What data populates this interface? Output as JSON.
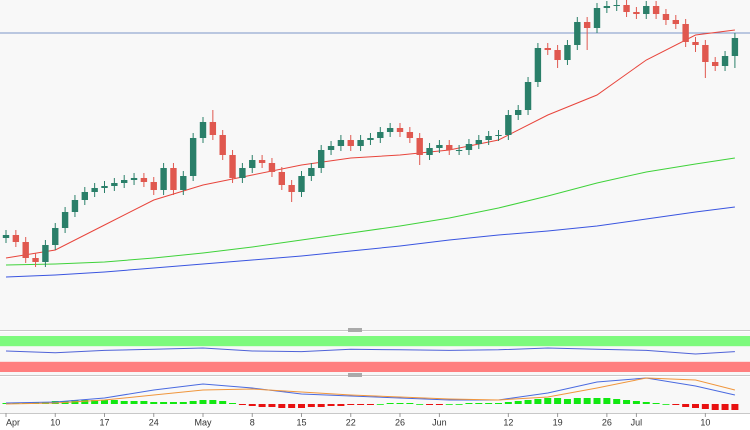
{
  "chart_data": {
    "type": "candlestick",
    "categories": [
      "Apr",
      null,
      null,
      null,
      null,
      "10",
      null,
      null,
      null,
      null,
      "17",
      null,
      null,
      null,
      null,
      "24",
      null,
      null,
      null,
      null,
      "May",
      null,
      null,
      null,
      null,
      "8",
      null,
      null,
      null,
      null,
      "15",
      null,
      null,
      null,
      null,
      "22",
      null,
      null,
      null,
      null,
      "26",
      null,
      null,
      null,
      "Jun",
      null,
      null,
      null,
      null,
      null,
      null,
      "12",
      null,
      null,
      null,
      null,
      "19",
      null,
      null,
      null,
      null,
      "26",
      null,
      null,
      "Jul",
      null,
      null,
      null,
      null,
      null,
      null,
      "10",
      null,
      null,
      null
    ],
    "open": [
      92,
      95,
      88,
      72,
      68,
      85,
      102,
      118,
      130,
      138,
      142,
      144,
      147,
      150,
      152,
      148,
      140,
      162,
      140,
      154,
      192,
      208,
      195,
      175,
      152,
      162,
      170,
      167,
      158,
      145,
      138,
      154,
      162,
      180,
      184,
      190,
      184,
      190,
      192,
      198,
      202,
      198,
      192,
      175,
      182,
      185,
      180,
      180,
      186,
      190,
      194,
      195,
      215,
      220,
      248,
      282,
      280,
      270,
      285,
      308,
      302,
      322,
      324,
      325,
      318,
      316,
      324,
      316,
      310,
      306,
      288,
      285,
      268,
      264,
      274
    ],
    "high": [
      100,
      100,
      93,
      77,
      90,
      107,
      123,
      135,
      143,
      147,
      149,
      152,
      155,
      157,
      157,
      153,
      167,
      167,
      159,
      197,
      213,
      220,
      200,
      180,
      167,
      175,
      175,
      172,
      163,
      150,
      159,
      167,
      185,
      189,
      195,
      195,
      195,
      197,
      203,
      207,
      207,
      203,
      197,
      187,
      190,
      190,
      185,
      191,
      195,
      199,
      200,
      220,
      225,
      253,
      287,
      287,
      285,
      290,
      313,
      313,
      327,
      329,
      330,
      330,
      323,
      329,
      329,
      321,
      315,
      311,
      293,
      290,
      273,
      279,
      297
    ],
    "low": [
      87,
      83,
      67,
      63,
      63,
      80,
      97,
      113,
      125,
      133,
      137,
      139,
      142,
      145,
      143,
      135,
      135,
      135,
      135,
      149,
      187,
      190,
      170,
      147,
      147,
      157,
      162,
      153,
      140,
      128,
      133,
      149,
      157,
      175,
      179,
      179,
      179,
      185,
      187,
      193,
      193,
      187,
      165,
      170,
      177,
      175,
      175,
      175,
      181,
      185,
      189,
      190,
      210,
      215,
      243,
      275,
      262,
      265,
      280,
      280,
      297,
      317,
      319,
      313,
      311,
      311,
      311,
      305,
      301,
      283,
      278,
      252,
      259,
      259,
      262
    ],
    "close": [
      95,
      88,
      72,
      68,
      85,
      102,
      118,
      130,
      138,
      142,
      144,
      147,
      150,
      152,
      148,
      140,
      162,
      140,
      154,
      192,
      208,
      195,
      175,
      152,
      162,
      170,
      167,
      158,
      145,
      138,
      154,
      162,
      180,
      184,
      190,
      184,
      190,
      192,
      198,
      202,
      198,
      192,
      175,
      182,
      185,
      180,
      180,
      186,
      190,
      194,
      195,
      215,
      220,
      248,
      282,
      280,
      270,
      285,
      308,
      302,
      322,
      324,
      325,
      318,
      316,
      324,
      316,
      310,
      306,
      288,
      285,
      268,
      264,
      274,
      292
    ],
    "up_color": "#2a7f69",
    "down_color": "#e0584f",
    "ylim": [
      0,
      330
    ],
    "hline": {
      "value": 297,
      "color": "#7d96c9"
    },
    "series": [
      {
        "color": "#e8453c",
        "x": [
          0,
          5,
          10,
          15,
          20,
          25,
          30,
          35,
          40,
          45,
          50,
          55,
          60,
          65,
          70,
          74
        ],
        "values": [
          72,
          80,
          105,
          130,
          145,
          155,
          165,
          172,
          175,
          180,
          190,
          215,
          235,
          270,
          295,
          300
        ]
      },
      {
        "color": "#3fd23a",
        "x": [
          0,
          5,
          10,
          15,
          20,
          25,
          30,
          35,
          40,
          45,
          50,
          55,
          60,
          65,
          70,
          74
        ],
        "values": [
          65,
          66,
          68,
          72,
          77,
          83,
          90,
          97,
          104,
          112,
          122,
          134,
          147,
          158,
          166,
          172
        ]
      },
      {
        "color": "#3a55e0",
        "x": [
          0,
          5,
          10,
          15,
          20,
          25,
          30,
          35,
          40,
          45,
          50,
          55,
          60,
          65,
          70,
          74
        ],
        "values": [
          53,
          55,
          58,
          62,
          66,
          70,
          74,
          79,
          84,
          90,
          95,
          99,
          104,
          111,
          118,
          123
        ]
      }
    ],
    "rsi": {
      "ylim": [
        20,
        80
      ],
      "upper_band": [
        63,
        80
      ],
      "lower_band": [
        20,
        37
      ],
      "upper_color": "#7dfa7d",
      "lower_color": "#ff7f7f",
      "color": "#4f63d8",
      "x": [
        0,
        5,
        10,
        15,
        20,
        25,
        30,
        35,
        40,
        45,
        50,
        55,
        60,
        65,
        70,
        74
      ],
      "values": [
        55,
        52,
        56,
        58,
        60,
        55,
        54,
        58,
        57,
        56,
        57,
        60,
        58,
        56,
        50,
        54
      ]
    },
    "macd": {
      "ylim": [
        -8,
        27
      ],
      "up_color": "#11e811",
      "down_color": "#e81111",
      "hist": [
        1,
        1,
        1,
        2,
        2,
        3,
        3,
        4,
        4,
        4,
        4,
        4,
        3,
        3,
        3,
        2,
        2,
        2,
        2,
        3,
        4,
        4,
        3,
        1,
        -1,
        -2,
        -3,
        -3,
        -4,
        -4,
        -4,
        -3,
        -3,
        -2,
        -2,
        -1,
        -1,
        -1,
        0,
        1,
        1,
        1,
        0,
        -1,
        -1,
        0,
        0,
        1,
        1,
        1,
        1,
        2,
        3,
        4,
        5,
        6,
        6,
        5,
        6,
        6,
        6,
        6,
        5,
        4,
        3,
        2,
        1,
        0,
        -1,
        -3,
        -4,
        -5,
        -6,
        -6,
        -6
      ],
      "lines": [
        {
          "color": "#4a6ae0",
          "x": [
            0,
            5,
            10,
            15,
            20,
            25,
            30,
            35,
            40,
            45,
            50,
            55,
            60,
            65,
            70,
            74
          ],
          "values": [
            1,
            2,
            6,
            14,
            20,
            16,
            10,
            8,
            6,
            4,
            4,
            11,
            22,
            26,
            18,
            9
          ]
        },
        {
          "color": "#f0963c",
          "x": [
            0,
            5,
            10,
            15,
            20,
            25,
            30,
            35,
            40,
            45,
            50,
            55,
            60,
            65,
            70,
            74
          ],
          "values": [
            0,
            1,
            4,
            9,
            14,
            15,
            12,
            9,
            7,
            5,
            4,
            7,
            16,
            26,
            24,
            14
          ]
        }
      ]
    }
  }
}
